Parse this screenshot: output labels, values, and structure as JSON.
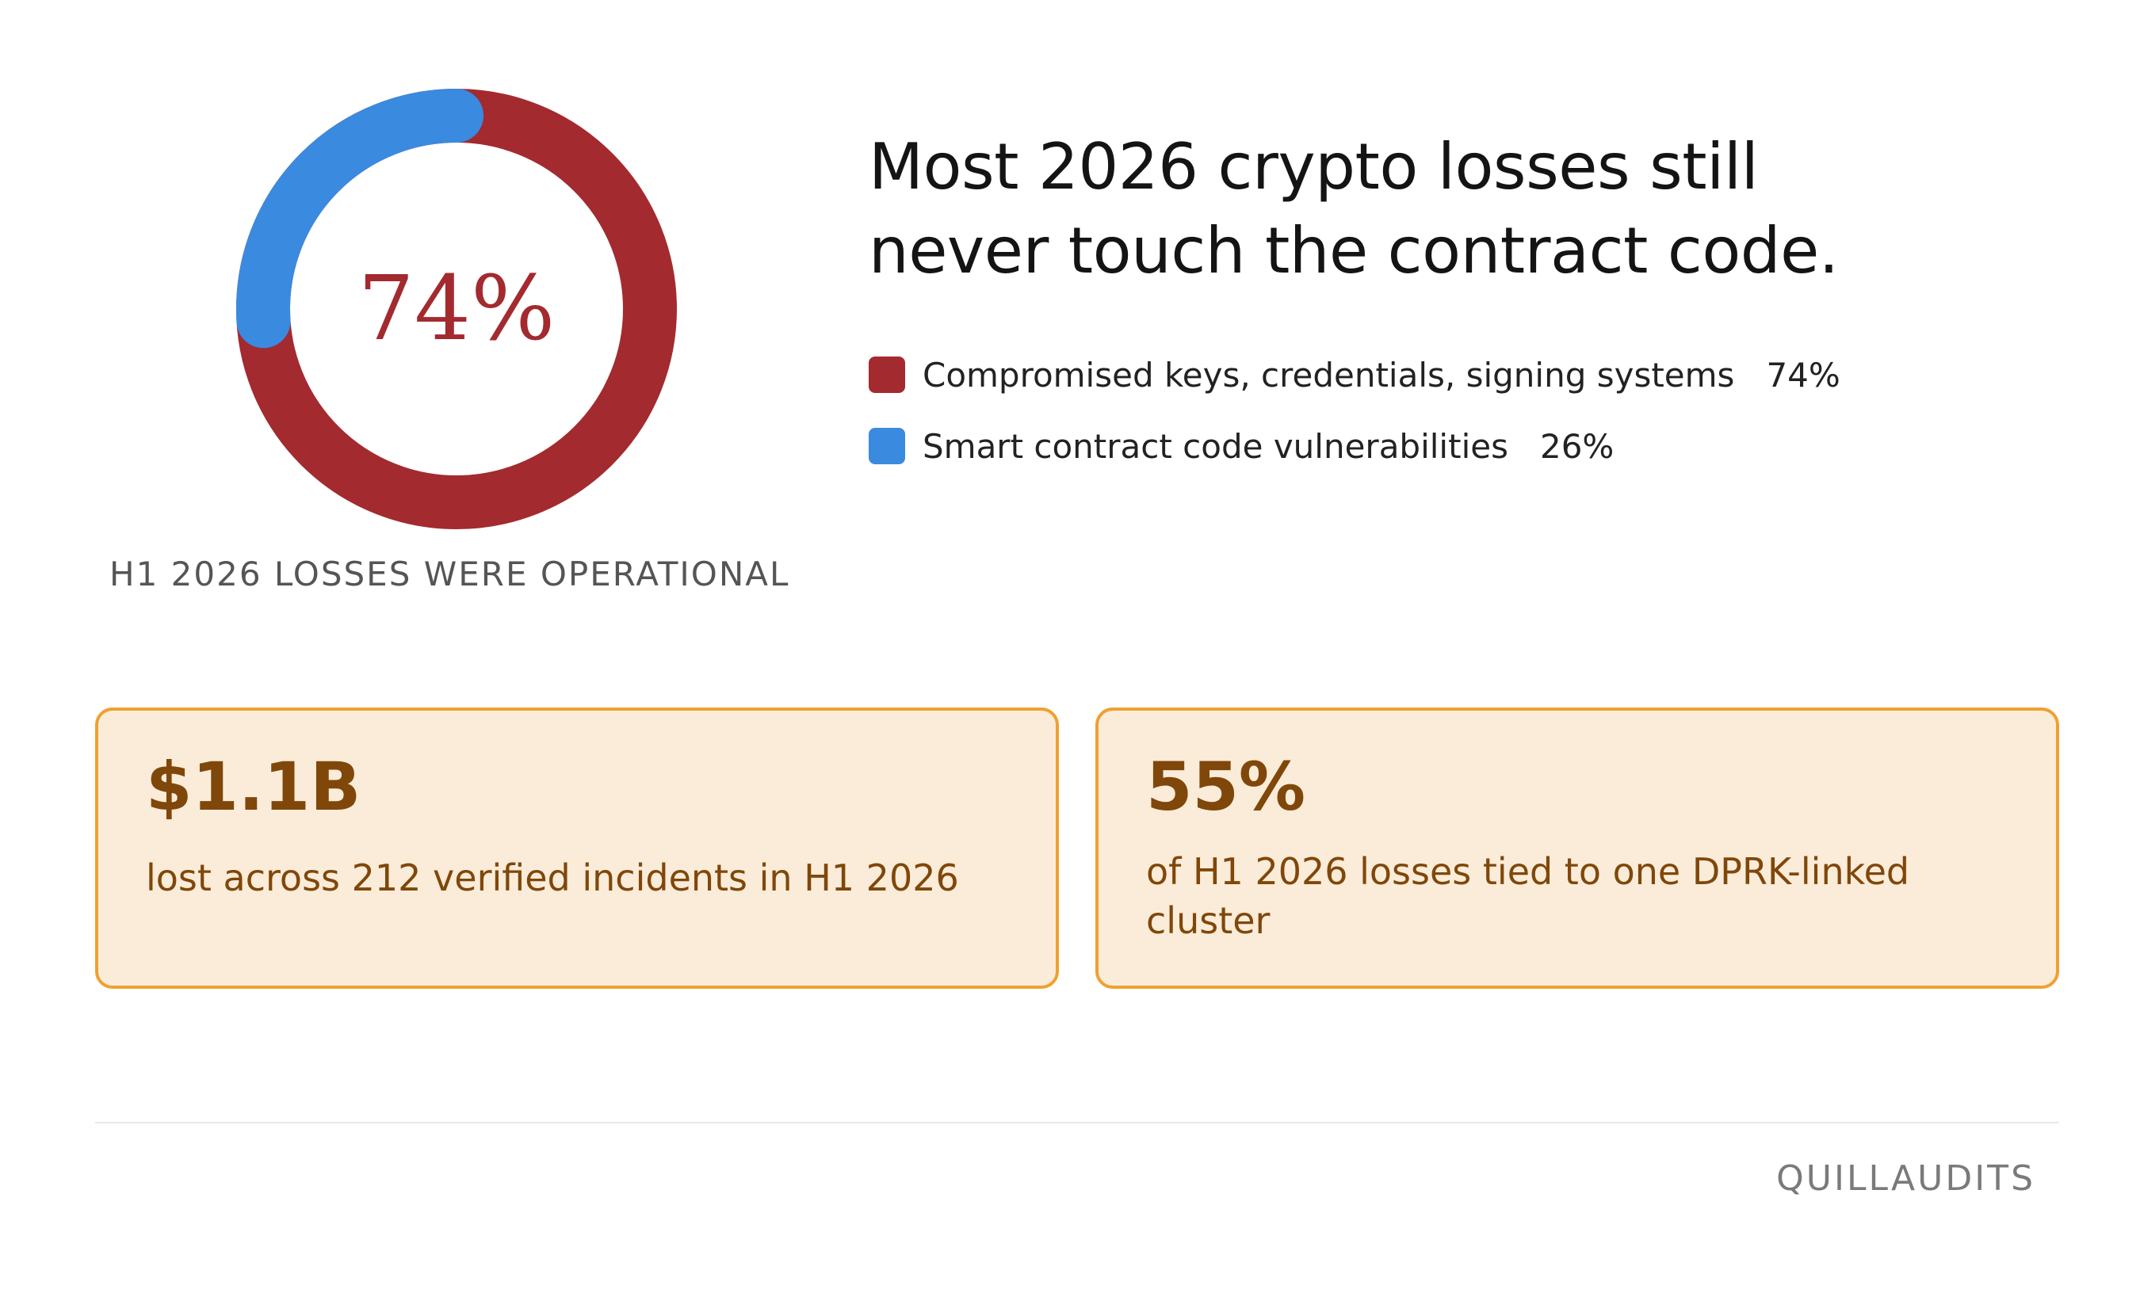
{
  "chart_data": {
    "type": "pie",
    "categories": [
      "Compromised keys, credentials, signing systems",
      "Smart contract code vulnerabilities"
    ],
    "values": [
      74,
      26
    ],
    "unit": "%",
    "colors": [
      "#a32a2f",
      "#3a8ae0"
    ],
    "center_label": "74%",
    "legend_placement": "right",
    "legend": [
      {
        "label": "Compromised keys, credentials, signing systems",
        "value_label": "74%",
        "color": "#a32a2f"
      },
      {
        "label": "Smart contract code vulnerabilities",
        "value_label": "26%",
        "color": "#3a8ae0"
      }
    ]
  },
  "headline": {
    "line1": "Most 2026 crypto losses still",
    "line2": "never touch the contract code."
  },
  "caption": "H1 2026 LOSSES WERE OPERATIONAL",
  "cards": [
    {
      "value": "$1.1B",
      "text": "lost across 212 verified incidents in H1 2026"
    },
    {
      "value": "55%",
      "text": "of H1 2026 losses tied to one DPRK-linked cluster"
    }
  ],
  "brand": "QUILLAUDITS",
  "colors": {
    "card_background": "#faecd9",
    "card_border": "#f0a030",
    "card_text": "#80470a",
    "headline_text": "#141414"
  }
}
